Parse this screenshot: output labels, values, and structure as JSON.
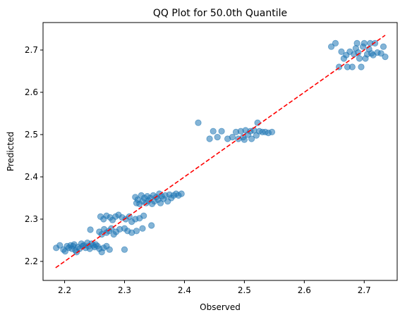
{
  "chart_data": {
    "type": "scatter",
    "title": "QQ Plot for 50.0th Quantile",
    "xlabel": "Observed",
    "ylabel": "Predicted",
    "xlim": [
      2.164,
      2.755
    ],
    "ylim": [
      2.155,
      2.765
    ],
    "xticks": [
      "2.2",
      "2.3",
      "2.4",
      "2.5",
      "2.6",
      "2.7"
    ],
    "yticks": [
      "2.2",
      "2.3",
      "2.4",
      "2.5",
      "2.6",
      "2.7"
    ],
    "grid": false,
    "legend": "none",
    "colors": {
      "points": "#1f77b4",
      "reference": "#ff0000"
    },
    "reference_line": {
      "style": "dashed",
      "from": [
        2.185,
        2.185
      ],
      "to": [
        2.735,
        2.735
      ]
    },
    "series": [
      {
        "values": [
          [
            2.186,
            2.232
          ],
          [
            2.192,
            2.238
          ],
          [
            2.198,
            2.228
          ],
          [
            2.201,
            2.224
          ],
          [
            2.204,
            2.236
          ],
          [
            2.207,
            2.232
          ],
          [
            2.21,
            2.238
          ],
          [
            2.212,
            2.23
          ],
          [
            2.214,
            2.236
          ],
          [
            2.216,
            2.24
          ],
          [
            2.218,
            2.226
          ],
          [
            2.22,
            2.222
          ],
          [
            2.222,
            2.234
          ],
          [
            2.225,
            2.23
          ],
          [
            2.228,
            2.242
          ],
          [
            2.23,
            2.236
          ],
          [
            2.232,
            2.238
          ],
          [
            2.235,
            2.232
          ],
          [
            2.238,
            2.244
          ],
          [
            2.24,
            2.236
          ],
          [
            2.242,
            2.23
          ],
          [
            2.245,
            2.242
          ],
          [
            2.248,
            2.238
          ],
          [
            2.25,
            2.234
          ],
          [
            2.252,
            2.24
          ],
          [
            2.255,
            2.236
          ],
          [
            2.258,
            2.23
          ],
          [
            2.262,
            2.222
          ],
          [
            2.265,
            2.232
          ],
          [
            2.27,
            2.236
          ],
          [
            2.275,
            2.228
          ],
          [
            2.3,
            2.228
          ],
          [
            2.243,
            2.275
          ],
          [
            2.258,
            2.27
          ],
          [
            2.262,
            2.264
          ],
          [
            2.266,
            2.276
          ],
          [
            2.27,
            2.268
          ],
          [
            2.274,
            2.272
          ],
          [
            2.278,
            2.278
          ],
          [
            2.282,
            2.264
          ],
          [
            2.286,
            2.27
          ],
          [
            2.292,
            2.276
          ],
          [
            2.3,
            2.278
          ],
          [
            2.305,
            2.272
          ],
          [
            2.312,
            2.268
          ],
          [
            2.32,
            2.272
          ],
          [
            2.33,
            2.278
          ],
          [
            2.345,
            2.285
          ],
          [
            2.26,
            2.306
          ],
          [
            2.265,
            2.3
          ],
          [
            2.27,
            2.308
          ],
          [
            2.276,
            2.304
          ],
          [
            2.28,
            2.298
          ],
          [
            2.285,
            2.306
          ],
          [
            2.29,
            2.31
          ],
          [
            2.296,
            2.304
          ],
          [
            2.302,
            2.3
          ],
          [
            2.308,
            2.306
          ],
          [
            2.312,
            2.294
          ],
          [
            2.318,
            2.3
          ],
          [
            2.325,
            2.302
          ],
          [
            2.332,
            2.308
          ],
          [
            2.318,
            2.352
          ],
          [
            2.32,
            2.338
          ],
          [
            2.322,
            2.346
          ],
          [
            2.325,
            2.336
          ],
          [
            2.328,
            2.356
          ],
          [
            2.33,
            2.342
          ],
          [
            2.333,
            2.35
          ],
          [
            2.336,
            2.338
          ],
          [
            2.338,
            2.354
          ],
          [
            2.34,
            2.344
          ],
          [
            2.343,
            2.35
          ],
          [
            2.346,
            2.336
          ],
          [
            2.348,
            2.356
          ],
          [
            2.35,
            2.342
          ],
          [
            2.353,
            2.352
          ],
          [
            2.356,
            2.346
          ],
          [
            2.358,
            2.36
          ],
          [
            2.36,
            2.338
          ],
          [
            2.362,
            2.354
          ],
          [
            2.365,
            2.348
          ],
          [
            2.368,
            2.356
          ],
          [
            2.372,
            2.342
          ],
          [
            2.375,
            2.358
          ],
          [
            2.378,
            2.35
          ],
          [
            2.382,
            2.356
          ],
          [
            2.386,
            2.36
          ],
          [
            2.39,
            2.356
          ],
          [
            2.395,
            2.36
          ],
          [
            2.423,
            2.528
          ],
          [
            2.442,
            2.49
          ],
          [
            2.448,
            2.508
          ],
          [
            2.455,
            2.494
          ],
          [
            2.462,
            2.508
          ],
          [
            2.472,
            2.49
          ],
          [
            2.48,
            2.494
          ],
          [
            2.486,
            2.506
          ],
          [
            2.49,
            2.49
          ],
          [
            2.494,
            2.508
          ],
          [
            2.498,
            2.494
          ],
          [
            2.502,
            2.51
          ],
          [
            2.506,
            2.5
          ],
          [
            2.51,
            2.508
          ],
          [
            2.512,
            2.49
          ],
          [
            2.516,
            2.51
          ],
          [
            2.52,
            2.498
          ],
          [
            2.522,
            2.528
          ],
          [
            2.525,
            2.508
          ],
          [
            2.53,
            2.506
          ],
          [
            2.535,
            2.506
          ],
          [
            2.54,
            2.504
          ],
          [
            2.546,
            2.506
          ],
          [
            2.5,
            2.488
          ],
          [
            2.645,
            2.708
          ],
          [
            2.652,
            2.716
          ],
          [
            2.658,
            2.66
          ],
          [
            2.662,
            2.696
          ],
          [
            2.666,
            2.68
          ],
          [
            2.67,
            2.688
          ],
          [
            2.672,
            2.66
          ],
          [
            2.676,
            2.696
          ],
          [
            2.68,
            2.66
          ],
          [
            2.683,
            2.69
          ],
          [
            2.686,
            2.704
          ],
          [
            2.688,
            2.716
          ],
          [
            2.69,
            2.694
          ],
          [
            2.692,
            2.68
          ],
          [
            2.695,
            2.66
          ],
          [
            2.698,
            2.708
          ],
          [
            2.7,
            2.716
          ],
          [
            2.702,
            2.68
          ],
          [
            2.705,
            2.69
          ],
          [
            2.708,
            2.702
          ],
          [
            2.71,
            2.716
          ],
          [
            2.712,
            2.692
          ],
          [
            2.715,
            2.688
          ],
          [
            2.718,
            2.716
          ],
          [
            2.722,
            2.694
          ],
          [
            2.728,
            2.692
          ],
          [
            2.732,
            2.708
          ],
          [
            2.735,
            2.684
          ]
        ]
      }
    ]
  }
}
